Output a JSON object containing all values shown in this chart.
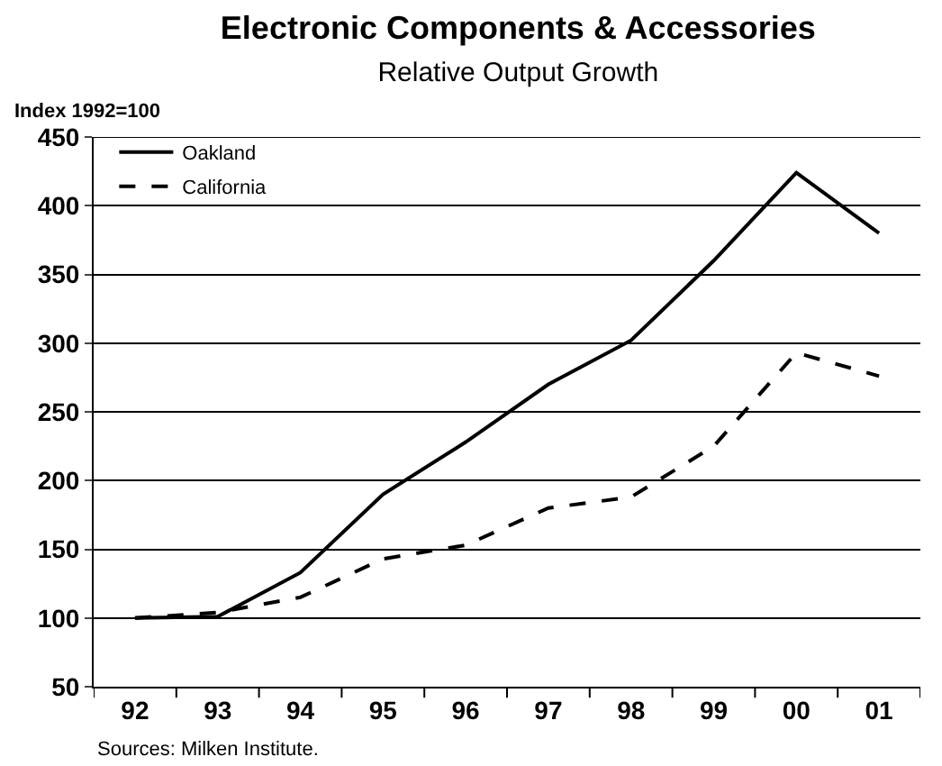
{
  "chart_data": {
    "type": "line",
    "title": "Electronic Components & Accessories",
    "subtitle": "Relative Output Growth",
    "ylabel": "Index 1992=100",
    "categories": [
      "92",
      "93",
      "94",
      "95",
      "96",
      "97",
      "98",
      "99",
      "00",
      "01"
    ],
    "series": [
      {
        "name": "Oakland",
        "color": "#000000",
        "line_style": "solid",
        "values": [
          100,
          101,
          133,
          190,
          228,
          270,
          302,
          360,
          424,
          380
        ]
      },
      {
        "name": "California",
        "color": "#000000",
        "line_style": "dashed",
        "values": [
          100,
          104,
          115,
          143,
          153,
          180,
          188,
          225,
          293,
          276
        ]
      }
    ],
    "ylim": [
      50,
      450
    ],
    "yticks": [
      50,
      100,
      150,
      200,
      250,
      300,
      350,
      400,
      450
    ],
    "grid": "y",
    "legend": "top left",
    "marker": "none",
    "annotations": [
      "Sources: Milken Institute."
    ]
  }
}
